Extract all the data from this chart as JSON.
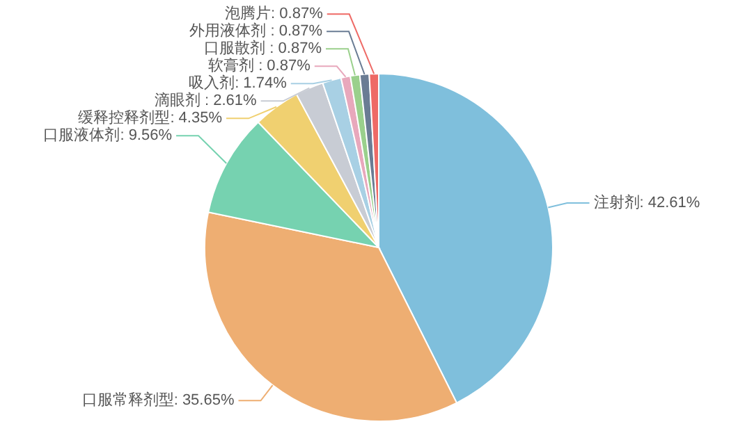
{
  "chart_data": {
    "type": "pie",
    "categories": [
      "注射剂",
      "口服常释剂型",
      "口服液体剂",
      "缓释控释剂型",
      "滴眼剂",
      "吸入剂",
      "软膏剂",
      "口服散剂",
      "外用液体剂",
      "泡腾片"
    ],
    "values": [
      42.61,
      35.65,
      9.56,
      4.35,
      2.61,
      1.74,
      0.87,
      0.87,
      0.87,
      0.87
    ],
    "colors": [
      "#7fbfdc",
      "#eeae72",
      "#76d2b0",
      "#f0d070",
      "#c8ccd4",
      "#a8d0e4",
      "#e8a8bc",
      "#9ad08c",
      "#6a7c94",
      "#ee6a66"
    ],
    "value_labels": [
      ": 42.61%",
      ": 35.65%",
      ": 9.56%",
      ": 4.35%",
      " : 2.61%",
      ": 1.74%",
      " : 0.87%",
      " : 0.87%",
      " : 0.87%",
      ": 0.87%"
    ]
  }
}
